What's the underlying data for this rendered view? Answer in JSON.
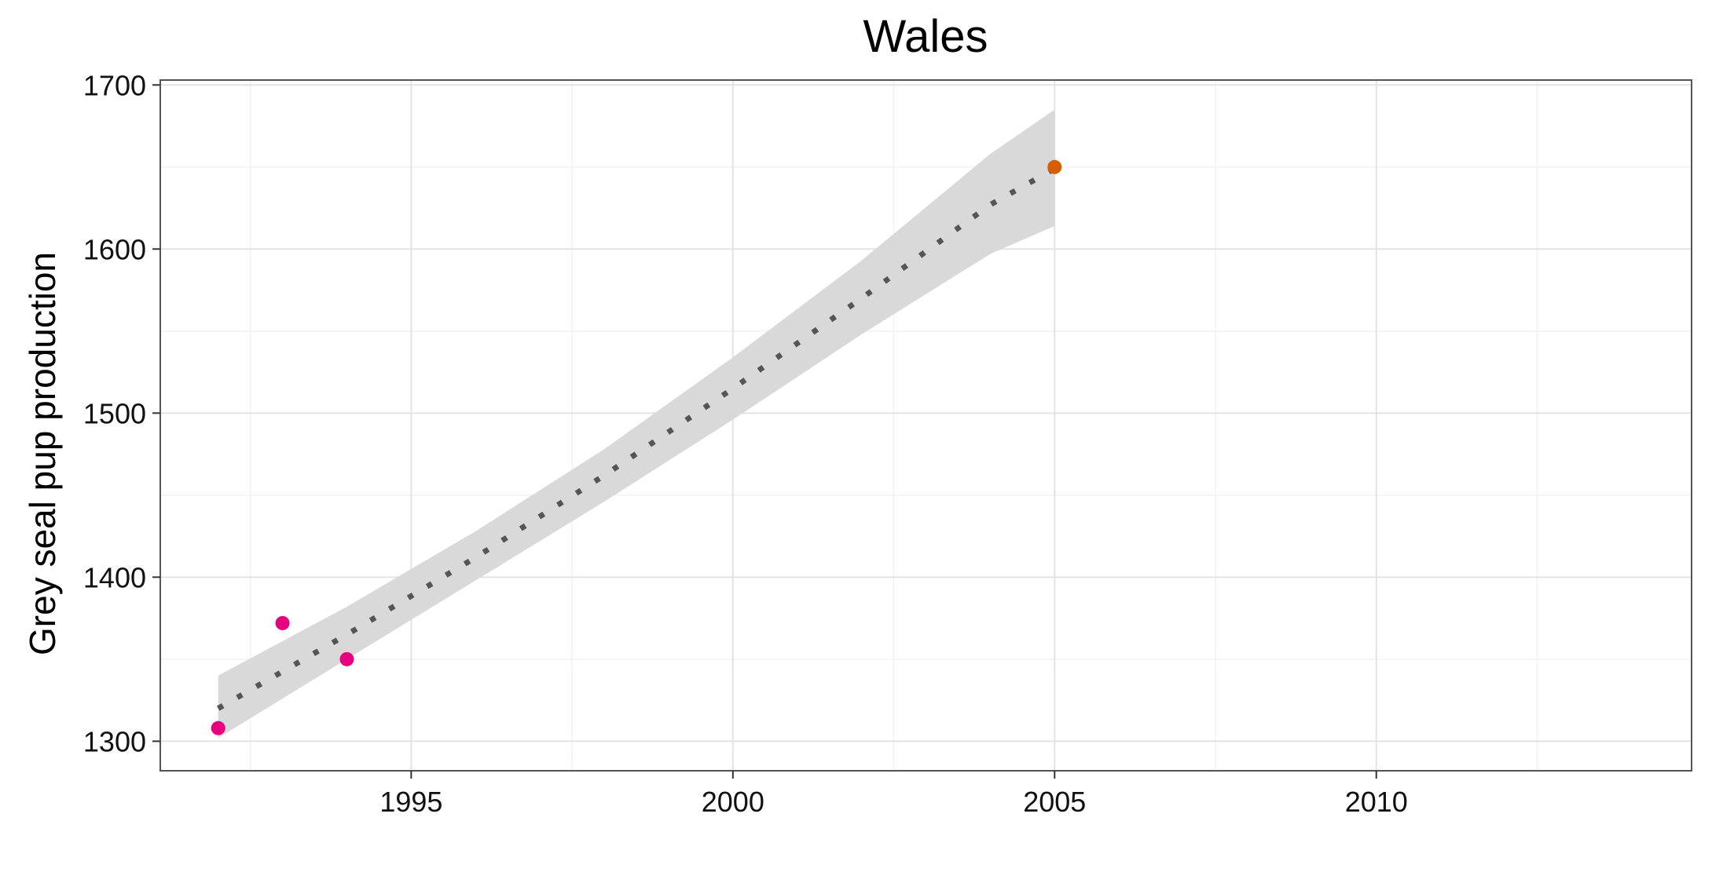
{
  "chart_data": {
    "type": "scatter",
    "title": "Wales",
    "xlabel": "",
    "ylabel": "Grey seal pup production",
    "xlim": [
      1991.1,
      2014.9
    ],
    "ylim": [
      1282,
      1703
    ],
    "x_ticks": [
      1995,
      2000,
      2005,
      2010
    ],
    "y_ticks": [
      1300,
      1400,
      1500,
      1600,
      1700
    ],
    "grid": true,
    "legend": "none",
    "series": [
      {
        "kind": "points",
        "color": "#e6007e",
        "points": [
          {
            "x": 1992,
            "y": 1308
          },
          {
            "x": 1993,
            "y": 1372
          },
          {
            "x": 1994,
            "y": 1350
          }
        ]
      },
      {
        "kind": "points",
        "color": "#d55e00",
        "points": [
          {
            "x": 2005,
            "y": 1650
          }
        ]
      },
      {
        "kind": "trend",
        "style": "dotted",
        "color": "#555555",
        "band_color": "#d9d9d9",
        "points": [
          {
            "x": 1992,
            "y": 1320,
            "lower": 1302,
            "upper": 1340
          },
          {
            "x": 1994,
            "y": 1365,
            "lower": 1350,
            "upper": 1382
          },
          {
            "x": 1996,
            "y": 1412,
            "lower": 1398,
            "upper": 1428
          },
          {
            "x": 1998,
            "y": 1462,
            "lower": 1446,
            "upper": 1478
          },
          {
            "x": 2000,
            "y": 1515,
            "lower": 1496,
            "upper": 1534
          },
          {
            "x": 2002,
            "y": 1570,
            "lower": 1548,
            "upper": 1593
          },
          {
            "x": 2004,
            "y": 1627,
            "lower": 1597,
            "upper": 1658
          },
          {
            "x": 2005,
            "y": 1649,
            "lower": 1614,
            "upper": 1685
          }
        ]
      }
    ]
  }
}
